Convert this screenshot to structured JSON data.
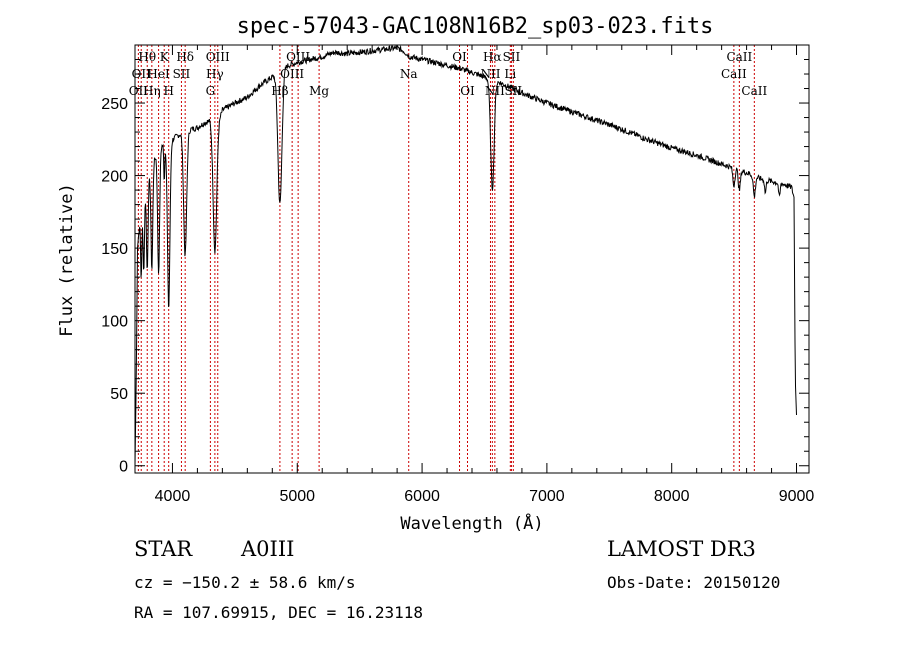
{
  "chart_data": {
    "type": "line",
    "title": "spec-57043-GAC108N16B2_sp03-023.fits",
    "xlabel": "Wavelength (Å)",
    "ylabel": "Flux (relative)",
    "xlim": [
      3700,
      9100
    ],
    "ylim": [
      -5,
      290
    ],
    "xticks": [
      4000,
      5000,
      6000,
      7000,
      8000,
      9000
    ],
    "yticks": [
      0,
      50,
      100,
      150,
      200,
      250
    ],
    "line_color": "#000000",
    "marker_color": "#cc0000",
    "spectrum": {
      "continuum": [
        [
          3700,
          0
        ],
        [
          3710,
          60
        ],
        [
          3720,
          150
        ],
        [
          3740,
          170
        ],
        [
          3780,
          185
        ],
        [
          3820,
          200
        ],
        [
          3850,
          210
        ],
        [
          3900,
          220
        ],
        [
          3950,
          222
        ],
        [
          4000,
          225
        ],
        [
          4050,
          228
        ],
        [
          4100,
          230
        ],
        [
          4150,
          232
        ],
        [
          4200,
          233
        ],
        [
          4250,
          236
        ],
        [
          4300,
          238
        ],
        [
          4350,
          232
        ],
        [
          4400,
          245
        ],
        [
          4500,
          250
        ],
        [
          4600,
          254
        ],
        [
          4700,
          262
        ],
        [
          4800,
          268
        ],
        [
          4860,
          272
        ],
        [
          4900,
          275
        ],
        [
          5000,
          278
        ],
        [
          5100,
          280
        ],
        [
          5200,
          282
        ],
        [
          5300,
          285
        ],
        [
          5400,
          284
        ],
        [
          5500,
          285
        ],
        [
          5600,
          286
        ],
        [
          5700,
          287
        ],
        [
          5800,
          288
        ],
        [
          5850,
          286
        ],
        [
          5900,
          282
        ],
        [
          6000,
          280
        ],
        [
          6100,
          278
        ],
        [
          6200,
          276
        ],
        [
          6300,
          274
        ],
        [
          6400,
          271
        ],
        [
          6500,
          268
        ],
        [
          6600,
          265
        ],
        [
          6700,
          261
        ],
        [
          6800,
          257
        ],
        [
          7000,
          250
        ],
        [
          7200,
          244
        ],
        [
          7400,
          238
        ],
        [
          7600,
          232
        ],
        [
          7800,
          225
        ],
        [
          8000,
          219
        ],
        [
          8200,
          214
        ],
        [
          8400,
          208
        ],
        [
          8500,
          205
        ],
        [
          8600,
          202
        ],
        [
          8700,
          198
        ],
        [
          8800,
          196
        ],
        [
          8900,
          194
        ],
        [
          8960,
          192
        ],
        [
          8980,
          185
        ],
        [
          8990,
          60
        ],
        [
          9000,
          35
        ]
      ],
      "absorptions": [
        {
          "center": 3750,
          "depth": 45,
          "width": 5
        },
        {
          "center": 3770,
          "depth": 50,
          "width": 5
        },
        {
          "center": 3798,
          "depth": 58,
          "width": 6
        },
        {
          "center": 3835,
          "depth": 70,
          "width": 7
        },
        {
          "center": 3889,
          "depth": 85,
          "width": 8
        },
        {
          "center": 3934,
          "depth": 25,
          "width": 4
        },
        {
          "center": 3970,
          "depth": 115,
          "width": 10
        },
        {
          "center": 4102,
          "depth": 85,
          "width": 12
        },
        {
          "center": 4340,
          "depth": 85,
          "width": 14
        },
        {
          "center": 4861,
          "depth": 92,
          "width": 16
        },
        {
          "center": 6563,
          "depth": 75,
          "width": 14
        },
        {
          "center": 8498,
          "depth": 12,
          "width": 8
        },
        {
          "center": 8542,
          "depth": 14,
          "width": 8
        },
        {
          "center": 8662,
          "depth": 14,
          "width": 8
        },
        {
          "center": 8750,
          "depth": 9,
          "width": 6
        },
        {
          "center": 8863,
          "depth": 10,
          "width": 6
        }
      ]
    },
    "line_markers": [
      {
        "wavelength": 3727,
        "label": "OII",
        "row": 2
      },
      {
        "wavelength": 3750,
        "label": "OII",
        "row": 1
      },
      {
        "wavelength": 3798,
        "label": "Hθ",
        "row": 0
      },
      {
        "wavelength": 3835,
        "label": "Hη",
        "row": 2
      },
      {
        "wavelength": 3889,
        "label": "HeI",
        "row": 1
      },
      {
        "wavelength": 3934,
        "label": "K",
        "row": 0
      },
      {
        "wavelength": 3970,
        "label": "H",
        "row": 2
      },
      {
        "wavelength": 4072,
        "label": "SII",
        "row": 1
      },
      {
        "wavelength": 4102,
        "label": "Hδ",
        "row": 0
      },
      {
        "wavelength": 4304,
        "label": "G",
        "row": 2
      },
      {
        "wavelength": 4340,
        "label": "Hγ",
        "row": 1
      },
      {
        "wavelength": 4363,
        "label": "OIII",
        "row": 0
      },
      {
        "wavelength": 4861,
        "label": "Hβ",
        "row": 2
      },
      {
        "wavelength": 4959,
        "label": "OIII",
        "row": 1
      },
      {
        "wavelength": 5007,
        "label": "OIII",
        "row": 0
      },
      {
        "wavelength": 5175,
        "label": "Mg",
        "row": 2
      },
      {
        "wavelength": 5893,
        "label": "Na",
        "row": 1
      },
      {
        "wavelength": 6300,
        "label": "OI",
        "row": 0
      },
      {
        "wavelength": 6364,
        "label": "OI",
        "row": 2
      },
      {
        "wavelength": 6548,
        "label": "NII",
        "row": 1
      },
      {
        "wavelength": 6563,
        "label": "Hα",
        "row": 0
      },
      {
        "wavelength": 6583,
        "label": "NII",
        "row": 2
      },
      {
        "wavelength": 6707,
        "label": "Li",
        "row": 1
      },
      {
        "wavelength": 6716,
        "label": "SII",
        "row": 0
      },
      {
        "wavelength": 6731,
        "label": "SII",
        "row": 2
      },
      {
        "wavelength": 8498,
        "label": "CaII",
        "row": 1
      },
      {
        "wavelength": 8542,
        "label": "CaII",
        "row": 0
      },
      {
        "wavelength": 8662,
        "label": "CaII",
        "row": 2
      }
    ]
  },
  "info": {
    "object_class": "STAR",
    "subclass": "A0III",
    "survey": "LAMOST DR3",
    "redshift_text": "cz = −150.2 ± 58.6 km/s",
    "obs_date_text": "Obs-Date: 20150120",
    "coords_text": "RA = 107.69915, DEC =  16.23118"
  }
}
